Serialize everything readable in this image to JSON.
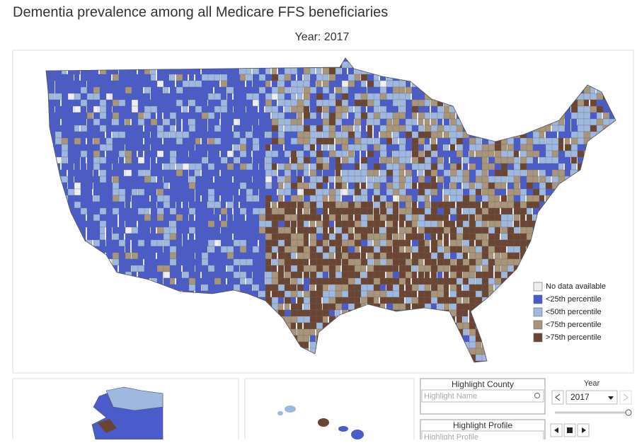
{
  "title": "Dementia prevalence among all Medicare FFS beneficiaries",
  "subtitle": "Year: 2017",
  "legend": [
    {
      "label": "No data available",
      "color": "#eeeeee"
    },
    {
      "label": "<25th percentile",
      "color": "#4a5ccc"
    },
    {
      "label": "<50th percentile",
      "color": "#9fb8e0"
    },
    {
      "label": "<75th percentile",
      "color": "#a99579"
    },
    {
      "label": ">75th percentile",
      "color": "#6b4532"
    }
  ],
  "highlight_county": {
    "title": "Highlight County",
    "placeholder": "Highlight Name"
  },
  "highlight_profile": {
    "title": "Highlight Profile",
    "placeholder": "Highlight Profile"
  },
  "year_control": {
    "label": "Year",
    "value": "2017"
  }
}
